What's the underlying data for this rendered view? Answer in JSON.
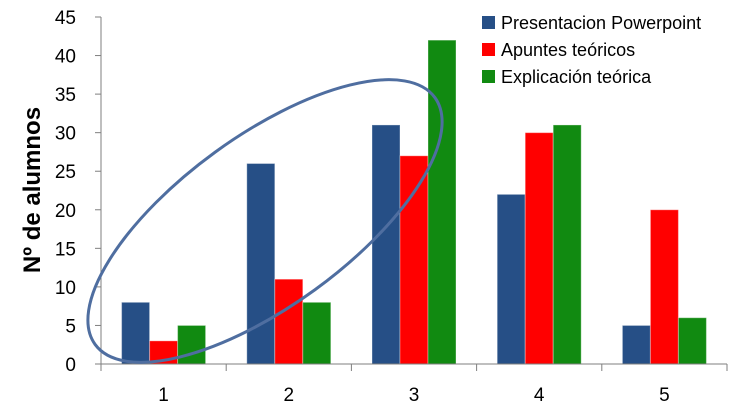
{
  "chart_data": {
    "type": "bar",
    "categories": [
      "1",
      "2",
      "3",
      "4",
      "5"
    ],
    "series": [
      {
        "name": "Presentacion Powerpoint",
        "values": [
          8,
          26,
          31,
          22,
          5
        ],
        "color": "#264F86"
      },
      {
        "name": "Apuntes teóricos",
        "values": [
          3,
          11,
          27,
          30,
          20
        ],
        "color": "#FF0000"
      },
      {
        "name": "Explicación teórica",
        "values": [
          5,
          8,
          42,
          31,
          6
        ],
        "color": "#118A11"
      }
    ],
    "ylabel": "Nº de alumnos",
    "ylim": [
      0,
      45
    ],
    "yticks": [
      0,
      5,
      10,
      15,
      20,
      25,
      30,
      35,
      40,
      45
    ],
    "grid": false,
    "legend": "top-right",
    "annotation": {
      "shape": "ellipse",
      "color": "#4F6EA0",
      "encloses": "categories 1-3"
    }
  }
}
